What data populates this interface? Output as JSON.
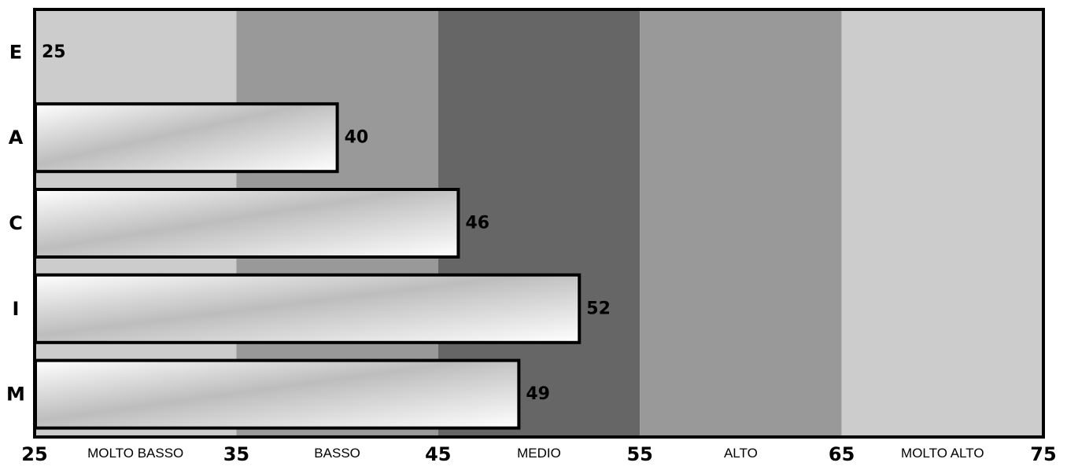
{
  "chart_data": {
    "type": "bar",
    "orientation": "horizontal",
    "categories": [
      "E",
      "A",
      "C",
      "I",
      "M"
    ],
    "values": [
      25,
      40,
      46,
      52,
      49
    ],
    "value_labels": [
      "25",
      "40",
      "46",
      "52",
      "49"
    ],
    "xlim": [
      25,
      75
    ],
    "x_ticks": [
      25,
      35,
      45,
      55,
      65,
      75
    ],
    "x_tick_labels": [
      "25",
      "35",
      "45",
      "55",
      "65",
      "75"
    ],
    "bands": [
      {
        "from": 25,
        "to": 35,
        "label": "MOLTO BASSO",
        "color": "#cccccc"
      },
      {
        "from": 35,
        "to": 45,
        "label": "BASSO",
        "color": "#999999"
      },
      {
        "from": 45,
        "to": 55,
        "label": "MEDIO",
        "color": "#666666"
      },
      {
        "from": 55,
        "to": 65,
        "label": "ALTO",
        "color": "#999999"
      },
      {
        "from": 65,
        "to": 75,
        "label": "MOLTO ALTO",
        "color": "#cccccc"
      }
    ],
    "grid": false,
    "legend": "none",
    "title": "",
    "xlabel": "",
    "ylabel": ""
  }
}
